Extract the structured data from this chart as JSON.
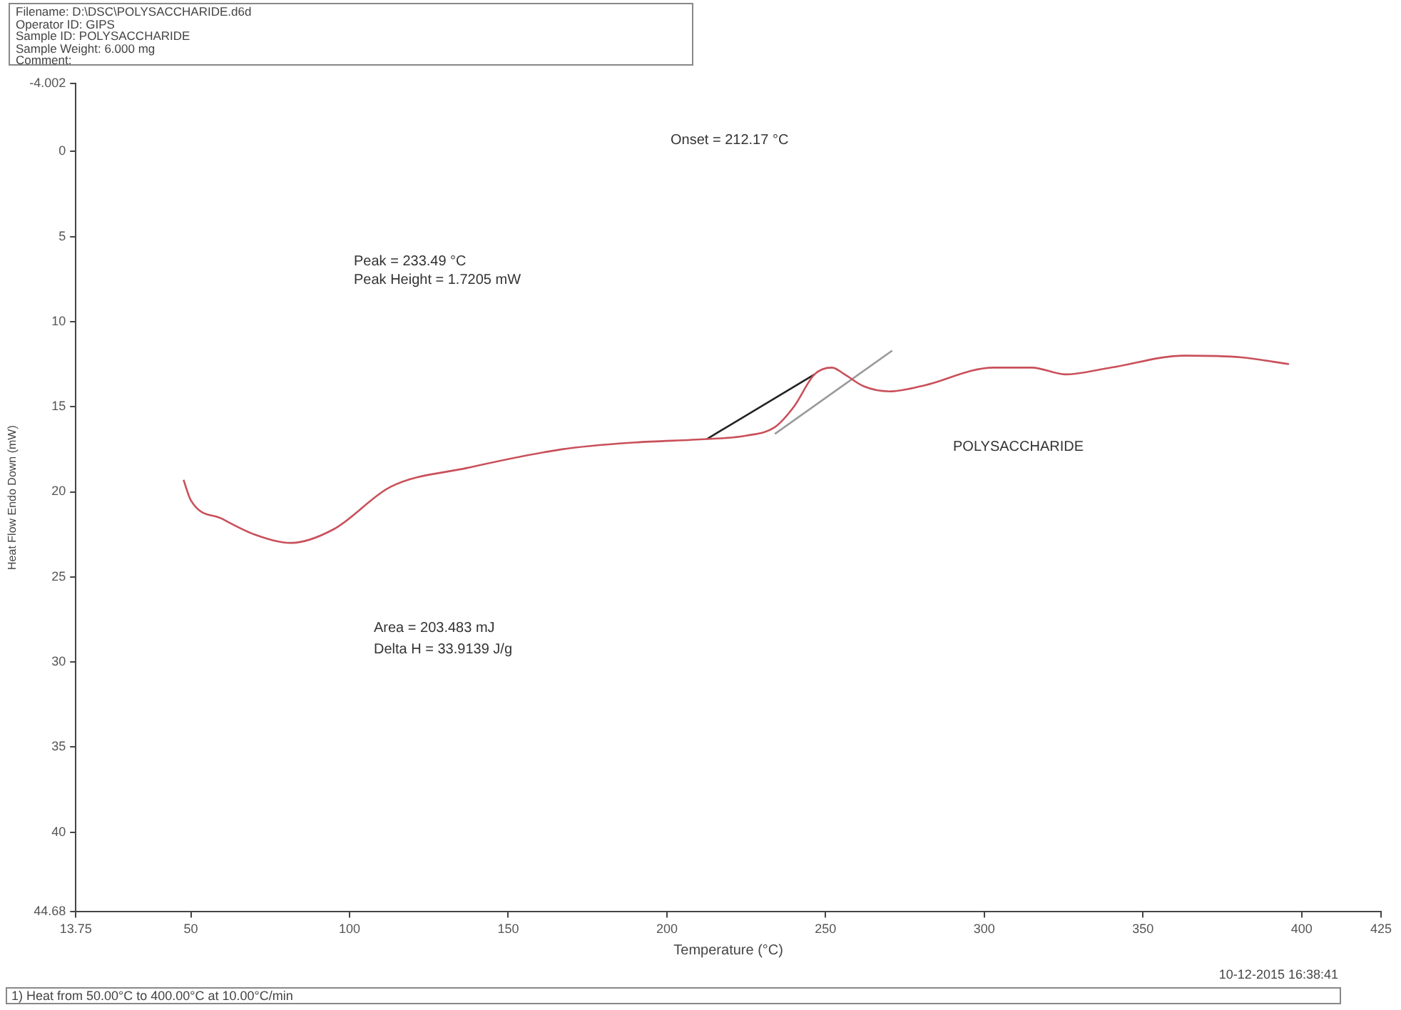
{
  "chart_data": {
    "type": "line",
    "xlabel": "Temperature (°C)",
    "ylabel": "Heat Flow Endo Down (mW)",
    "annotations": [
      "Filename:  D:\\DSC\\POLYSACCHARIDE.d6d",
      "Operator ID:  GIPS",
      "Sample ID:  POLYSACCHARIDE",
      "Sample Weight:  6.000 mg",
      "Comment:",
      "Onset = 212.17 °C",
      "Peak = 233.49 °C",
      "Peak Height = 1.7205 mW",
      "Area = 203.483 mJ",
      "Delta H = 33.9139 J/g",
      "POLYSACCHARIDE",
      "10-12-2015 16:38:41",
      "1)  Heat from 50.00°C to 400.00°C at 10.00°C/min"
    ],
    "series": [
      {
        "color": "#c9505a",
        "x": [
          47.7,
          50,
          60,
          70,
          81.6,
          95,
          113,
          137,
          167,
          190,
          212.6,
          225,
          234,
          240,
          246.5,
          252,
          256,
          262,
          270,
          280,
          303,
          315,
          325.5,
          340,
          363,
          381,
          396
        ],
        "values": [
          19.3,
          20.5,
          21.6,
          22.5,
          23.0,
          22.2,
          19.7,
          18.6,
          17.5,
          17.1,
          16.9,
          16.7,
          16.2,
          15.0,
          13.1,
          12.7,
          13.1,
          13.8,
          14.1,
          13.8,
          12.7,
          12.7,
          13.1,
          12.7,
          12.0,
          12.1,
          12.5
        ]
      },
      {
        "color": "#222222",
        "x": [
          212.6,
          246.5
        ],
        "values": [
          16.9,
          13.1
        ]
      },
      {
        "color": "#9a9a9a",
        "x": [
          234,
          271
        ],
        "values": [
          16.6,
          11.7
        ]
      }
    ],
    "xlim": [
      13.75,
      425
    ],
    "xticks": [
      13.75,
      50,
      100,
      150,
      200,
      250,
      300,
      350,
      400,
      425
    ],
    "ylim": [
      44.68,
      -4.002
    ],
    "yticks": [
      -4.002,
      0,
      5,
      10,
      15,
      20,
      25,
      30,
      35,
      40,
      44.68
    ],
    "grid": false,
    "legend": false,
    "marker": "none",
    "line_style": "solid"
  }
}
